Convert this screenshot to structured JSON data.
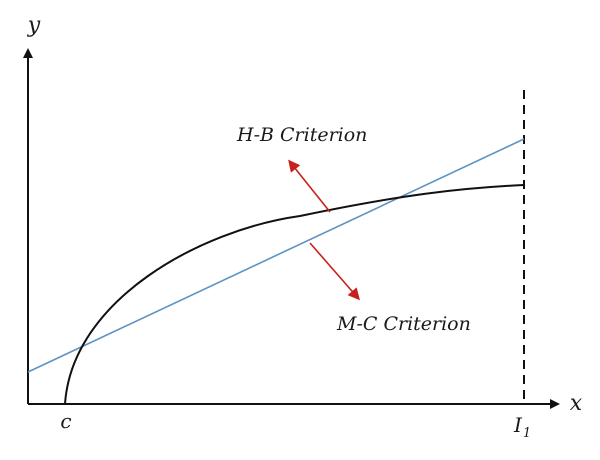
{
  "diagram": {
    "axes": {
      "x_label": "x",
      "y_label": "y"
    },
    "ticks": {
      "c_label": "c",
      "l1_main": "I",
      "l1_sub": "1"
    },
    "curves": {
      "hb_label": "H-B Criterion",
      "mc_label": "M-C Criterion"
    },
    "colors": {
      "axis": "#111111",
      "hb_curve": "#111111",
      "mc_line": "#5b93c4",
      "arrows": "#c8201c"
    }
  }
}
